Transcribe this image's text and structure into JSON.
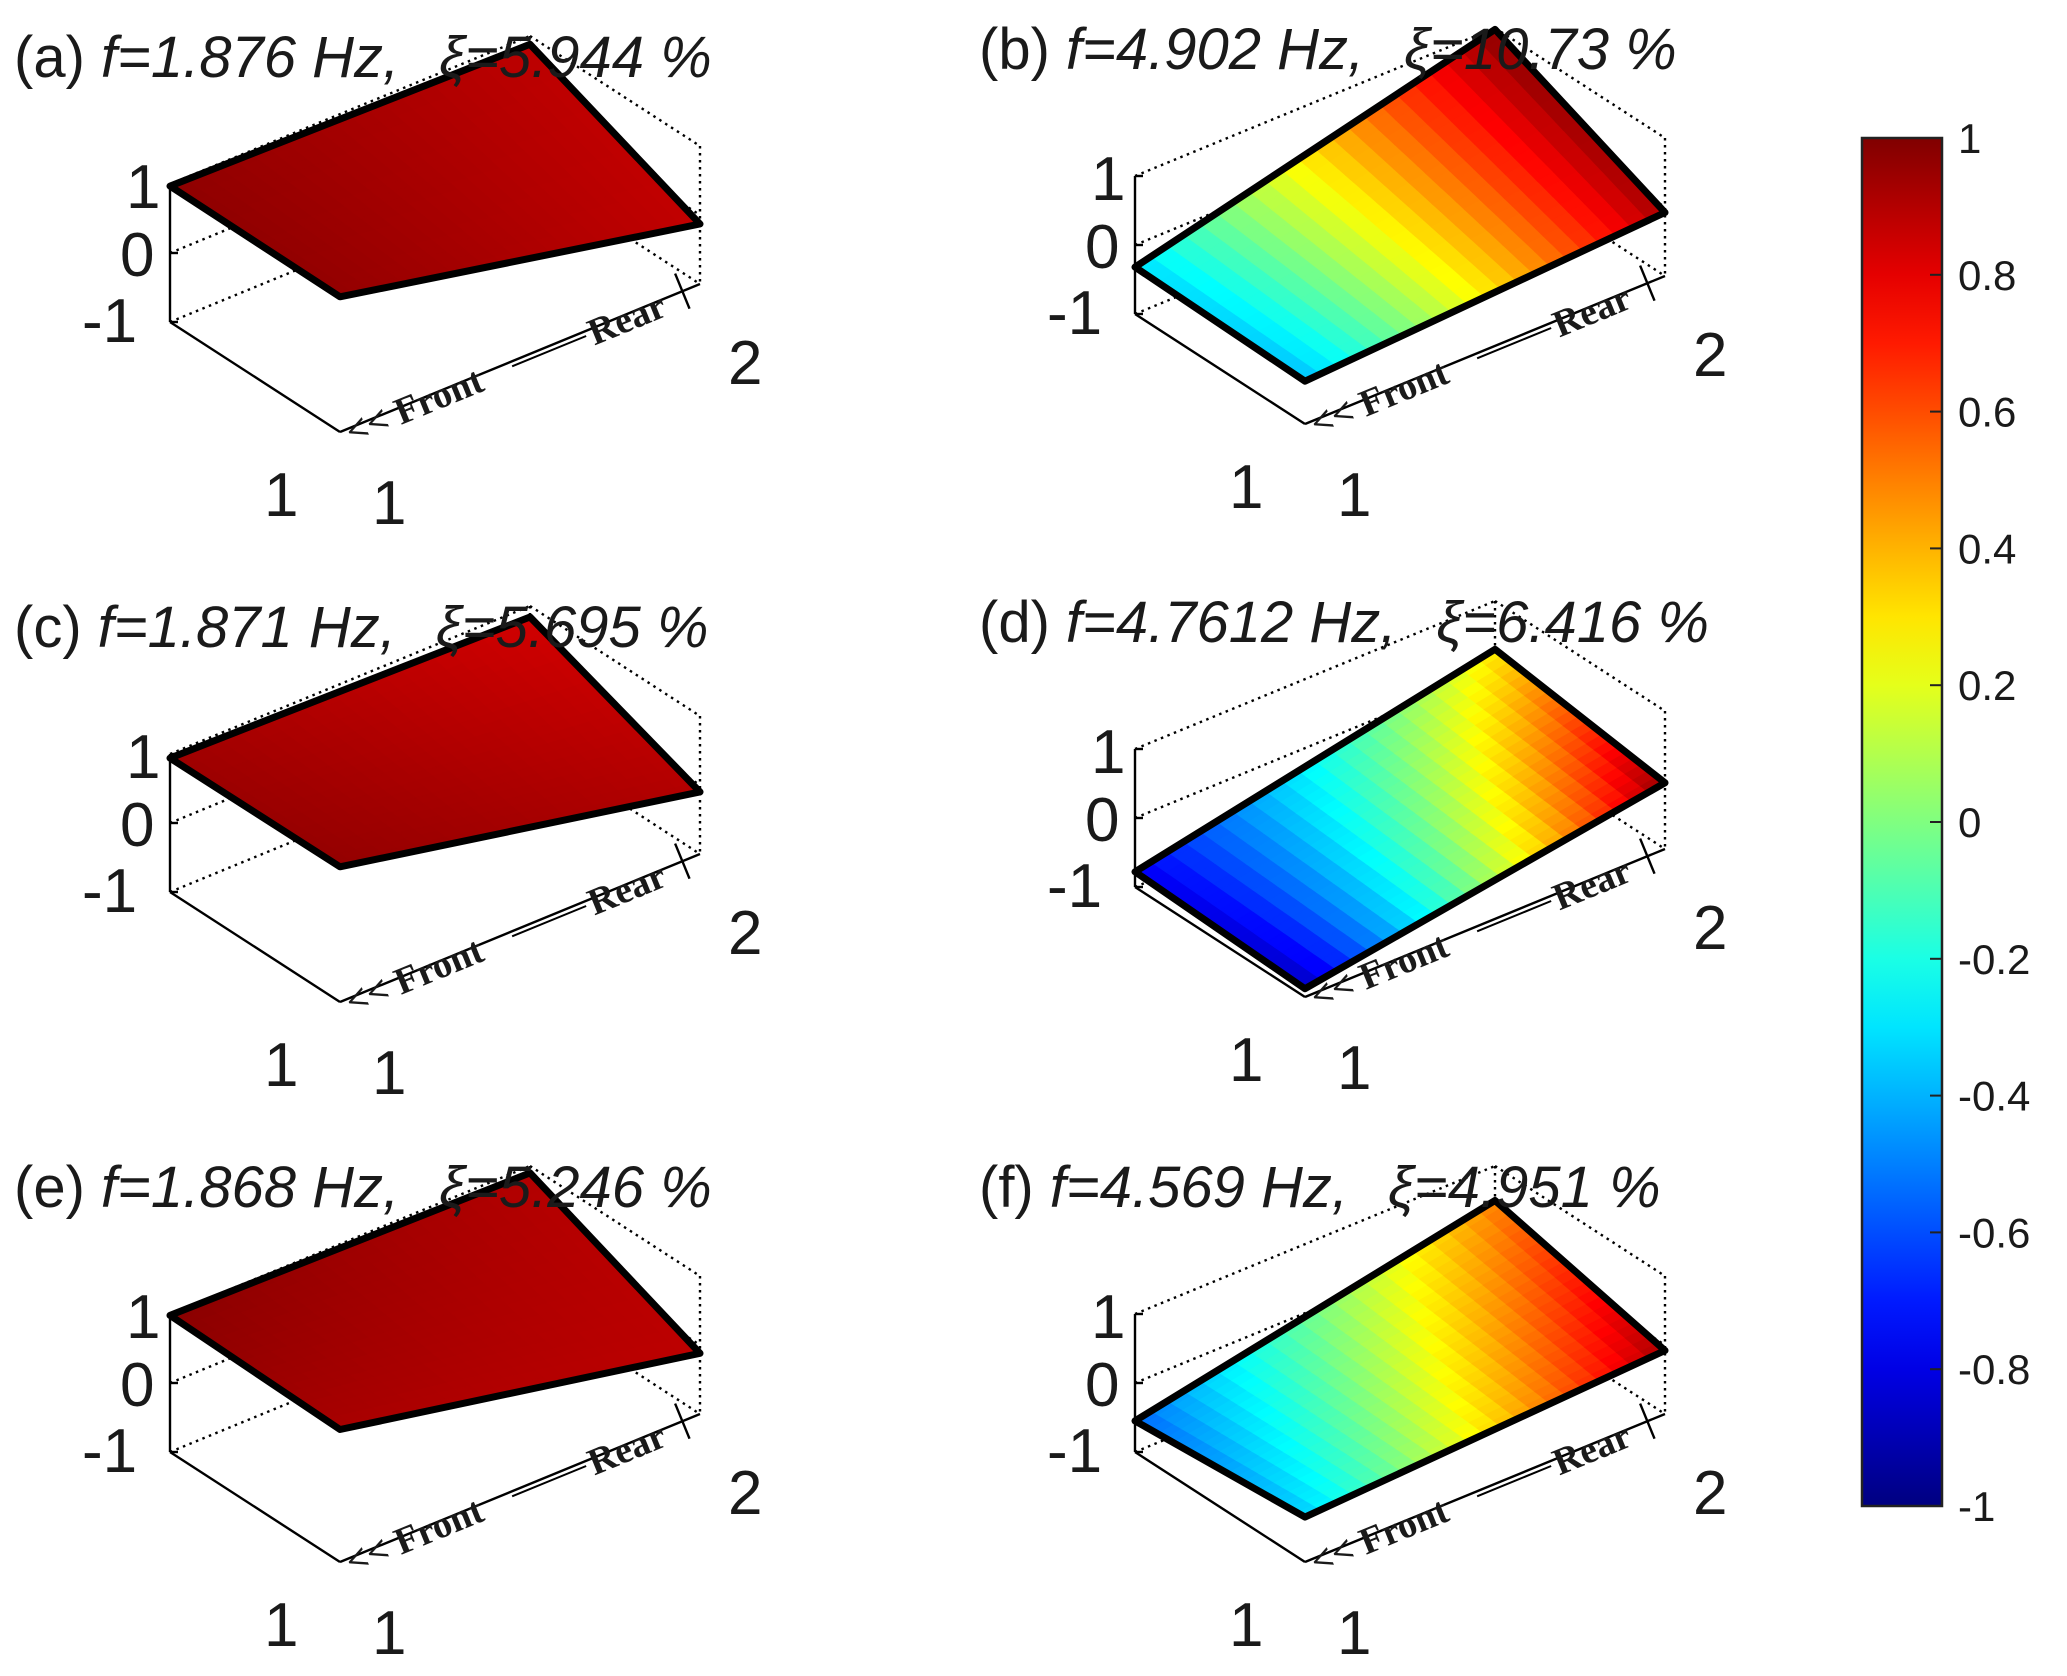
{
  "chart_data": [
    {
      "type": "heatmap",
      "panel": "a",
      "title": {
        "label": "(a)",
        "freq": "f=1.876 Hz,",
        "damping": "ξ=5.944 %"
      },
      "ztick_labels": [
        "1",
        "0",
        "-1"
      ],
      "xtick_label": "1",
      "ytick_labels": [
        "1",
        "2"
      ],
      "annotation": {
        "front": "<< Front",
        "rear": "Rear"
      },
      "corner_values": {
        "front_left": 0.97,
        "front_right": 0.96,
        "rear_left": 0.88,
        "rear_right": 0.87
      }
    },
    {
      "type": "heatmap",
      "panel": "b",
      "title": {
        "label": "(b)",
        "freq": "f=4.902 Hz,",
        "damping": "ξ=10.73 %"
      },
      "ztick_labels": [
        "1",
        "0",
        "-1"
      ],
      "xtick_label": "1",
      "ytick_labels": [
        "1",
        "2"
      ],
      "annotation": {
        "front": "<< Front",
        "rear": "Rear"
      },
      "corner_values": {
        "front_left": -0.32,
        "front_right": -0.38,
        "rear_left": 0.98,
        "rear_right": 0.92
      }
    },
    {
      "type": "heatmap",
      "panel": "c",
      "title": {
        "label": "(c)",
        "freq": "f=1.871 Hz,",
        "damping": "ξ=5.695 %"
      },
      "ztick_labels": [
        "1",
        "0",
        "-1"
      ],
      "xtick_label": "1",
      "ytick_labels": [
        "1",
        "2"
      ],
      "annotation": {
        "front": "<< Front",
        "rear": "Rear"
      },
      "corner_values": {
        "front_left": 0.94,
        "front_right": 0.96,
        "rear_left": 0.84,
        "rear_right": 0.9
      }
    },
    {
      "type": "heatmap",
      "panel": "d",
      "title": {
        "label": "(d)",
        "freq": "f=4.7612 Hz,",
        "damping": "ξ=6.416 %"
      },
      "ztick_labels": [
        "1",
        "0",
        "-1"
      ],
      "xtick_label": "1",
      "ytick_labels": [
        "1",
        "2"
      ],
      "annotation": {
        "front": "<< Front",
        "rear": "Rear"
      },
      "corner_values": {
        "front_left": -0.78,
        "front_right": -0.88,
        "rear_left": 0.3,
        "rear_right": 0.96
      }
    },
    {
      "type": "heatmap",
      "panel": "e",
      "title": {
        "label": "(e)",
        "freq": "f=1.868 Hz,",
        "damping": "ξ=5.246 %"
      },
      "ztick_labels": [
        "1",
        "0",
        "-1"
      ],
      "xtick_label": "1",
      "ytick_labels": [
        "1",
        "2"
      ],
      "annotation": {
        "front": "<< Front",
        "rear": "Rear"
      },
      "corner_values": {
        "front_left": 0.98,
        "front_right": 0.92,
        "rear_left": 0.9,
        "rear_right": 0.88
      }
    },
    {
      "type": "heatmap",
      "panel": "f",
      "title": {
        "label": "(f)",
        "freq": "f=4.569 Hz,",
        "damping": "ξ=4.951 %"
      },
      "ztick_labels": [
        "1",
        "0",
        "-1"
      ],
      "xtick_label": "1",
      "ytick_labels": [
        "1",
        "2"
      ],
      "annotation": {
        "front": "<< Front",
        "rear": "Rear"
      },
      "corner_values": {
        "front_left": -0.55,
        "front_right": -0.35,
        "rear_left": 0.5,
        "rear_right": 0.92
      }
    }
  ],
  "colorbar": {
    "colormap": "jet",
    "range": [
      -1,
      1
    ],
    "tick_labels": [
      "1",
      "0.8",
      "0.6",
      "0.4",
      "0.2",
      "0",
      "-0.2",
      "-0.4",
      "-0.6",
      "-0.8",
      "-1"
    ]
  }
}
